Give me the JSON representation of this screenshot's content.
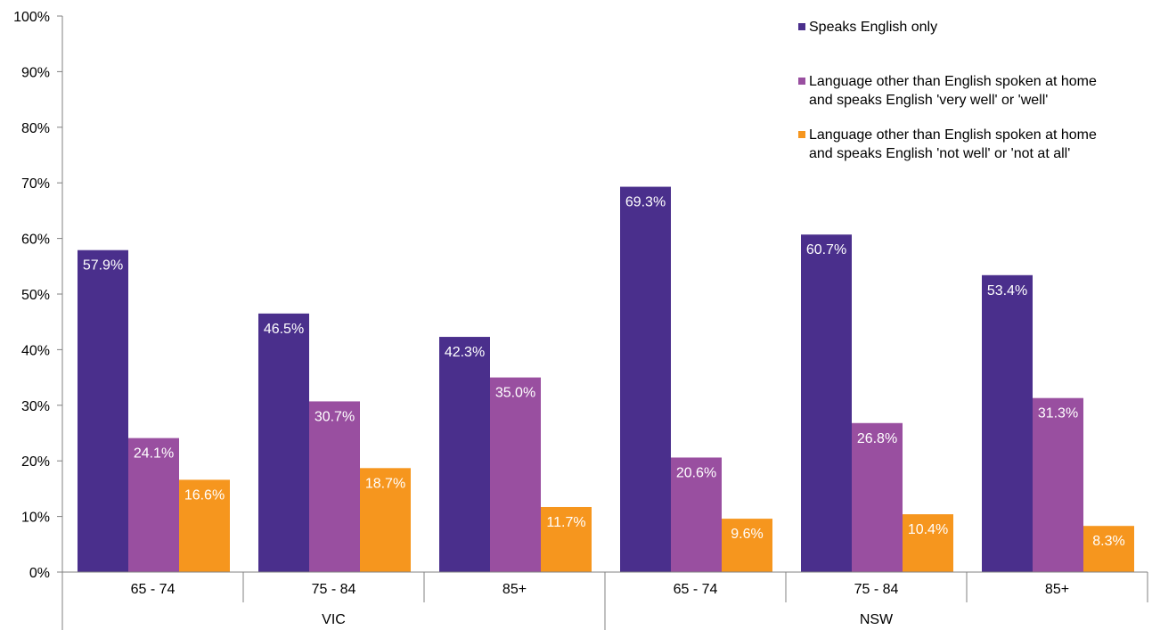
{
  "chart_data": {
    "type": "bar",
    "groups": [
      {
        "label": "VIC",
        "categories": [
          "65 - 74",
          "75 - 84",
          "85+"
        ]
      },
      {
        "label": "NSW",
        "categories": [
          "65 - 74",
          "75 - 84",
          "85+"
        ]
      }
    ],
    "series": [
      {
        "name": "Speaks English only",
        "color": "#4a2f8c",
        "values": [
          57.9,
          46.5,
          42.3,
          69.3,
          60.7,
          53.4
        ],
        "labels": [
          "57.9%",
          "46.5%",
          "42.3%",
          "69.3%",
          "60.7%",
          "53.4%"
        ]
      },
      {
        "name": "Language other than English spoken at home and speaks English 'very well' or 'well'",
        "color": "#994fa0",
        "values": [
          24.1,
          30.7,
          35.0,
          20.6,
          26.8,
          31.3
        ],
        "labels": [
          "24.1%",
          "30.7%",
          "35.0%",
          "20.6%",
          "26.8%",
          "31.3%"
        ]
      },
      {
        "name": "Language other than English spoken at home and speaks English 'not well' or 'not at all'",
        "color": "#f6961e",
        "values": [
          16.6,
          18.7,
          11.7,
          9.6,
          10.4,
          8.3
        ],
        "labels": [
          "16.6%",
          "18.7%",
          "11.7%",
          "9.6%",
          "10.4%",
          "8.3%"
        ]
      }
    ],
    "yticks": [
      "0%",
      "10%",
      "20%",
      "30%",
      "40%",
      "50%",
      "60%",
      "70%",
      "80%",
      "90%",
      "100%"
    ],
    "ylim": [
      0,
      100
    ],
    "grid": false,
    "legend_position": "top-right"
  },
  "legend": {
    "items": [
      {
        "lines": [
          "Speaks English only"
        ]
      },
      {
        "lines": [
          "Language other than English spoken at home",
          "and speaks English 'very well' or 'well'"
        ]
      },
      {
        "lines": [
          "Language other than English spoken at home",
          "and speaks English 'not well' or 'not at all'"
        ]
      }
    ]
  }
}
